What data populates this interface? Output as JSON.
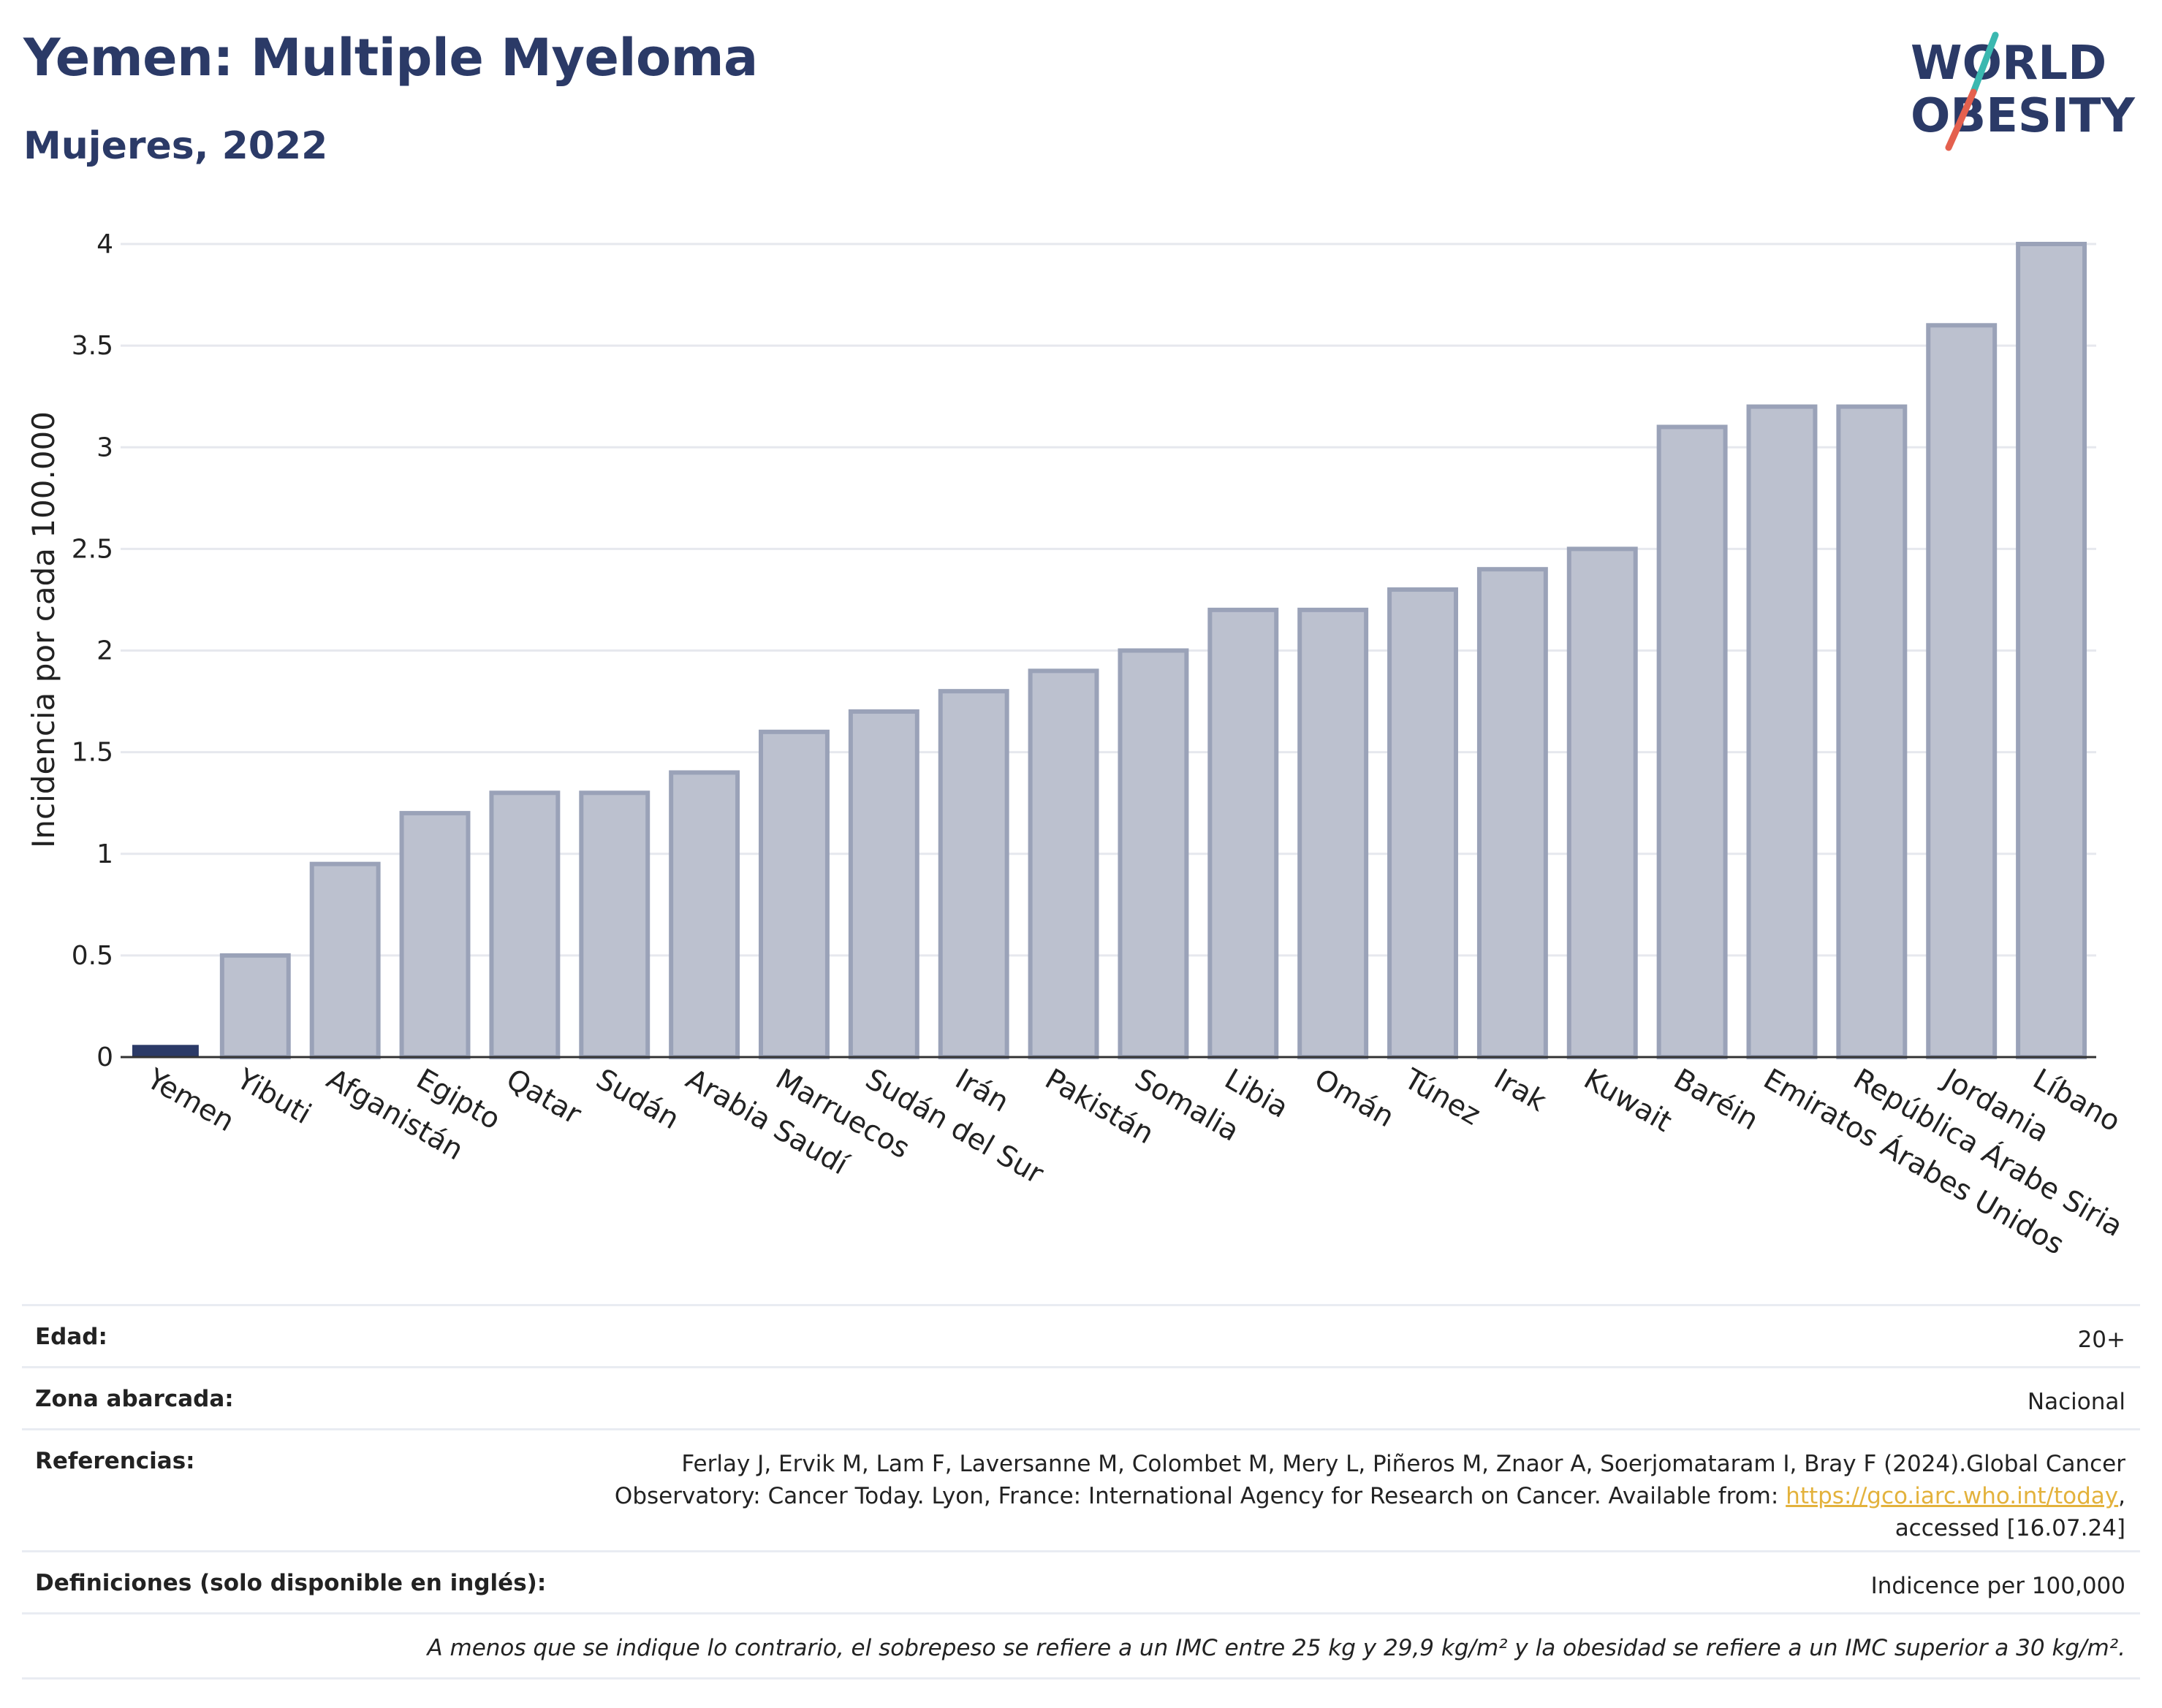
{
  "header": {
    "title": "Yemen: Multiple Myeloma",
    "subtitle": "Mujeres, 2022"
  },
  "logo": {
    "line1": "WORLD",
    "line2": "OBESITY",
    "colors": {
      "text": "#2b3a67",
      "slash_top": "#3bb8b0",
      "slash_bottom": "#e4604e"
    }
  },
  "chart_data": {
    "type": "bar",
    "ylabel": "Incidencia por cada 100.000",
    "ylim": [
      0,
      4
    ],
    "yticks": [
      0,
      0.5,
      1,
      1.5,
      2,
      2.5,
      3,
      3.5,
      4
    ],
    "ytick_labels": [
      "0",
      "0.5",
      "1",
      "1.5",
      "2",
      "2.5",
      "3",
      "3.5",
      "4"
    ],
    "categories": [
      "Yemen",
      "Yibuti",
      "Afganistán",
      "Egipto",
      "Qatar",
      "Sudán",
      "Arabia Saudí",
      "Marruecos",
      "Sudán del Sur",
      "Irán",
      "Pakistán",
      "Somalia",
      "Libia",
      "Omán",
      "Túnez",
      "Irak",
      "Kuwait",
      "Baréin",
      "Emiratos Árabes Unidos",
      "República Árabe Siria",
      "Jordania",
      "Líbano"
    ],
    "values": [
      0.06,
      0.5,
      0.95,
      1.2,
      1.3,
      1.3,
      1.4,
      1.6,
      1.7,
      1.8,
      1.9,
      2.0,
      2.2,
      2.2,
      2.3,
      2.4,
      2.5,
      3.1,
      3.2,
      3.2,
      3.6,
      4.0
    ],
    "highlight": "Yemen",
    "colors": {
      "highlight": "#2b3a67",
      "bar_fill": "#bcc1cf",
      "bar_stroke": "#9aa2b8",
      "grid": "#e6e8ee"
    },
    "grid": true
  },
  "info": {
    "age_label": "Edad:",
    "age_value": "20+",
    "area_label": "Zona abarcada:",
    "area_value": "Nacional",
    "refs_label": "Referencias:",
    "refs_line1": "Ferlay J, Ervik M, Lam F, Laversanne M, Colombet M, Mery L, Piñeros M, Znaor A, Soerjomataram I, Bray F (2024).Global Cancer",
    "refs_line2_prefix": "Observatory: Cancer Today. Lyon, France: International Agency for Research on Cancer. Available from: ",
    "refs_link": "https://gco.iarc.who.int/today",
    "refs_line2_suffix": ",",
    "refs_line3": "accessed [16.07.24]",
    "defs_label": "Definiciones (solo disponible en inglés):",
    "defs_value": "Indicence per 100,000",
    "footnote": "A menos que se indique lo contrario, el sobrepeso se refiere a un IMC entre 25 kg y 29,9 kg/m² y la obesidad se refiere a un IMC superior a 30 kg/m²."
  }
}
